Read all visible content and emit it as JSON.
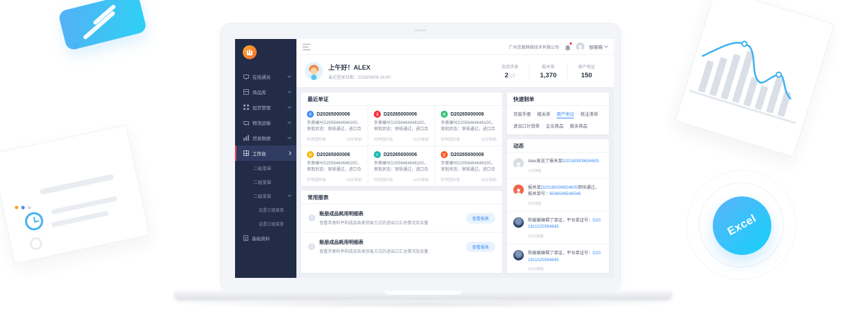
{
  "colors": {
    "accent_blue": "#3d8ef5",
    "sidebar_bg": "#222c47",
    "danger_red": "#e8384f",
    "logo_orange": "#f7672a"
  },
  "sidebar": {
    "items": [
      {
        "label": "在线通关"
      },
      {
        "label": "商品库"
      },
      {
        "label": "加贸管理"
      },
      {
        "label": "物流运输"
      },
      {
        "label": "贸易数据"
      },
      {
        "label": "工作台",
        "active": true
      },
      {
        "label": "基础资料"
      }
    ],
    "submenu": [
      {
        "label": "二级菜单"
      },
      {
        "label": "二级菜单"
      },
      {
        "label": "二级菜单"
      },
      {
        "label": "这是三级菜单"
      },
      {
        "label": "这是三级菜单"
      }
    ]
  },
  "topbar": {
    "company": "广州志图网络技术有限公司",
    "user": "张晓晓"
  },
  "welcome": {
    "greeting": "上午好！ALEX",
    "last_login": "最近登录日期：2018/08/08 16:00",
    "stats": [
      {
        "label": "加贸手册",
        "value": "2",
        "suffix": "/10"
      },
      {
        "label": "报关单",
        "value": "1,370",
        "suffix": ""
      },
      {
        "label": "原产地证",
        "value": "150",
        "suffix": ""
      }
    ]
  },
  "recent": {
    "title": "最近单证",
    "cards": [
      {
        "char": "手",
        "color": "#3d8ef5",
        "doc_no": "D20265000006",
        "desc": "手册编号D2056464646100，审批状态：审核通过，进口合同…",
        "org": "科学园科技",
        "time": "10分钟前"
      },
      {
        "char": "清",
        "color": "#f5222d",
        "doc_no": "D20265000006",
        "desc": "手册编号D2056464646100，审批状态：审核通过，进口合同…",
        "org": "科学园科技",
        "time": "10分钟前"
      },
      {
        "char": "核",
        "color": "#2fbf71",
        "doc_no": "D20265000006",
        "desc": "手册编号D2056464646100，审批状态：审核通过，进口合同…",
        "org": "科学园科技",
        "time": "10分钟前"
      },
      {
        "char": "报",
        "color": "#f7b500",
        "doc_no": "D20265000006",
        "desc": "手册编号D2056464646100，审批状态：审核通过，进口合同…",
        "org": "科学园科技",
        "time": "10分钟前"
      },
      {
        "char": "计",
        "color": "#12b5b0",
        "doc_no": "D20265000006",
        "desc": "手册编号D2056464646100，审批状态：审核通过，进口合同…",
        "org": "科学园科技",
        "time": "10分钟前"
      },
      {
        "char": "证",
        "color": "#fa541c",
        "doc_no": "D20265000006",
        "desc": "手册编号D2056464646100，审批状态：审核通过，进口合同…",
        "org": "科学园科技",
        "time": "10分钟前"
      }
    ]
  },
  "reports": {
    "title": "常用报表",
    "view_label": "查看报表",
    "rows": [
      {
        "num": "1",
        "title": "账册成品耗用明细表",
        "desc": "查看手册料件和成品各类贸易方式的进出口汇总情况及余量"
      },
      {
        "num": "2",
        "title": "账册成品耗用明细表",
        "desc": "查看手册料件和成品各类贸易方式的进出口汇总情况及余量"
      }
    ]
  },
  "quick": {
    "title": "快速制单",
    "links": [
      {
        "label": "贸易手册"
      },
      {
        "label": "报关单"
      },
      {
        "label": "原产地证",
        "active": true
      },
      {
        "label": "核注清单"
      },
      {
        "label": "进出口计划单"
      },
      {
        "label": "企业商品"
      },
      {
        "label": "报关商品"
      }
    ]
  },
  "activity": {
    "title": "动态",
    "items": [
      {
        "pre": "Alex发送了报关单",
        "link": "D20180009654605",
        "mid": "",
        "link2": "",
        "time": "1分钟前"
      },
      {
        "pre": "报关单",
        "link": "D20180009654605",
        "mid": "审核通过，报关单号：",
        "link2": "6546546546546",
        "time": "5分钟前"
      },
      {
        "pre": "陈媛媛编辑了单证，平台单证号：",
        "link": "D201811520564645",
        "mid": "",
        "link2": "",
        "time": "10分钟前"
      },
      {
        "pre": "陈媛媛编辑了单证，平台单证号：",
        "link": "D201811520564645",
        "mid": "",
        "link2": "",
        "time": "30分钟前"
      }
    ]
  },
  "decor": {
    "excel_label": "Excel",
    "chart_bars": [
      46,
      56,
      66,
      76,
      42,
      34,
      52,
      36
    ]
  }
}
